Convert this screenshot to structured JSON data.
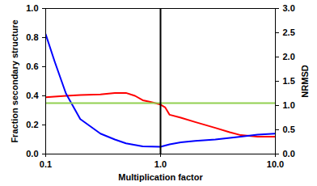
{
  "chart_data": {
    "type": "line",
    "xlabel": "Multiplication factor",
    "ylabel": "Fraction secondary structure",
    "y2label": "NRMSD",
    "log": "x",
    "xlim": [
      0.1,
      10
    ],
    "xticks": [
      0.1,
      {
        "value": 1,
        "label": "1.0"
      },
      {
        "value": 10,
        "label": "10.0"
      }
    ],
    "ylim": [
      0,
      1
    ],
    "yticks": [
      {
        "value": 0,
        "label": "0.0"
      },
      0.2,
      0.4,
      0.6,
      0.8,
      {
        "value": 1,
        "label": "1.0"
      }
    ],
    "y2lim": [
      0,
      3
    ],
    "y2ticks": [
      {
        "value": 0,
        "label": "0.0"
      },
      0.5,
      {
        "value": 1,
        "label": "1.0"
      },
      1.5,
      {
        "value": 2,
        "label": "2.0"
      },
      2.5,
      {
        "value": 3,
        "label": "3.0"
      }
    ],
    "series": [
      {
        "color": "#ff0000",
        "x": [
          0.1,
          0.15,
          0.2,
          0.3,
          0.4,
          0.5,
          0.6,
          0.7,
          0.8,
          0.9,
          1.0,
          1.1,
          1.2,
          1.5,
          2,
          3,
          4,
          5,
          7,
          10
        ],
        "values": [
          0.39,
          0.4,
          0.405,
          0.41,
          0.42,
          0.42,
          0.4,
          0.37,
          0.36,
          0.35,
          0.34,
          0.32,
          0.27,
          0.25,
          0.22,
          0.18,
          0.15,
          0.13,
          0.12,
          0.12
        ]
      },
      {
        "color": "#0000ff",
        "axis": "y2",
        "x": [
          0.1,
          0.12,
          0.15,
          0.2,
          0.3,
          0.4,
          0.5,
          0.7,
          1.0,
          1.2,
          1.5,
          2,
          3,
          5,
          7,
          10
        ],
        "values": [
          2.47,
          1.9,
          1.25,
          0.72,
          0.42,
          0.3,
          0.22,
          0.16,
          0.15,
          0.2,
          0.24,
          0.27,
          0.3,
          0.36,
          0.4,
          0.42
        ]
      },
      {
        "color": "#92d050",
        "x": [
          0.1,
          10
        ],
        "values": [
          0.35,
          0.35
        ]
      },
      {
        "color": "#000000",
        "x": [
          1,
          1
        ],
        "values": [
          0,
          1
        ]
      }
    ]
  }
}
